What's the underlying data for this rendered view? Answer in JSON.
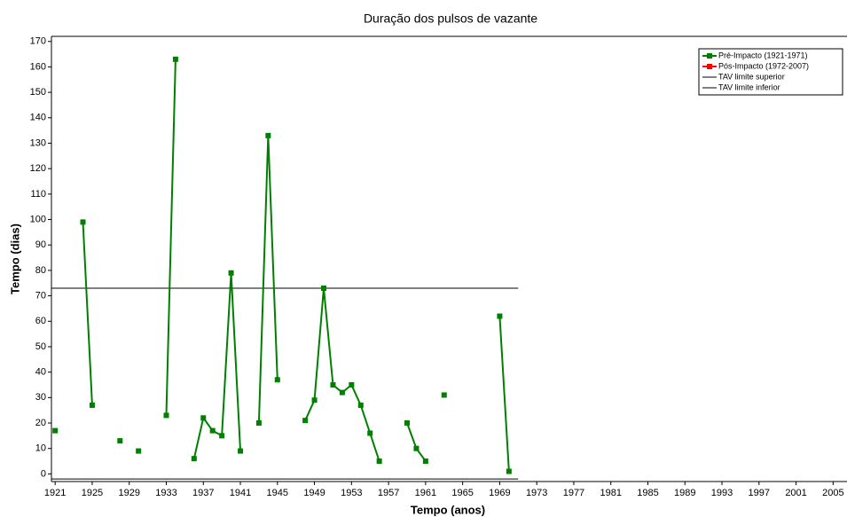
{
  "chart_data": {
    "type": "line",
    "title": "Duração dos pulsos de vazante",
    "x_label": "Tempo (anos)",
    "y_label": "Tempo (dias)",
    "xlim": [
      1920.6,
      2006.5
    ],
    "ylim": [
      -3,
      172
    ],
    "xticks": [
      1921,
      1925,
      1929,
      1933,
      1937,
      1941,
      1945,
      1949,
      1953,
      1957,
      1961,
      1965,
      1969,
      1973,
      1977,
      1981,
      1985,
      1989,
      1993,
      1997,
      2001,
      2005
    ],
    "yticks": [
      0,
      10,
      20,
      30,
      40,
      50,
      60,
      70,
      80,
      90,
      100,
      110,
      120,
      130,
      140,
      150,
      160,
      170
    ],
    "legend": "top-right",
    "series": [
      {
        "name": "Pré-Impacto (1921-1971)",
        "color": "#008000",
        "x": [
          1921,
          1922,
          1924,
          1925,
          1926,
          1928,
          1929,
          1930,
          1931,
          1933,
          1934,
          1935,
          1936,
          1937,
          1938,
          1939,
          1940,
          1941,
          1942,
          1943,
          1944,
          1945,
          1946,
          1948,
          1949,
          1950,
          1951,
          1952,
          1953,
          1954,
          1955,
          1956,
          1957,
          1959,
          1960,
          1961,
          1962,
          1963,
          1964,
          1969,
          1970
        ],
        "values": [
          17,
          null,
          99,
          27,
          null,
          13,
          null,
          9,
          null,
          23,
          163,
          null,
          6,
          22,
          17,
          15,
          79,
          9,
          null,
          20,
          133,
          37,
          null,
          21,
          29,
          73,
          35,
          32,
          35,
          27,
          16,
          5,
          null,
          20,
          10,
          5,
          null,
          31,
          null,
          62,
          1
        ]
      },
      {
        "name": "Pós-Impacto (1972-2007)",
        "color": "#ff0000",
        "x": [],
        "values": []
      }
    ],
    "reference_lines": [
      {
        "name": "TAV limite superior",
        "color": "#000000",
        "value": 73,
        "x": [
          1920.6,
          1971
        ]
      },
      {
        "name": "TAV limite inferior",
        "color": "#000000",
        "value": -2,
        "x": [
          1920.6,
          1971
        ]
      }
    ]
  }
}
